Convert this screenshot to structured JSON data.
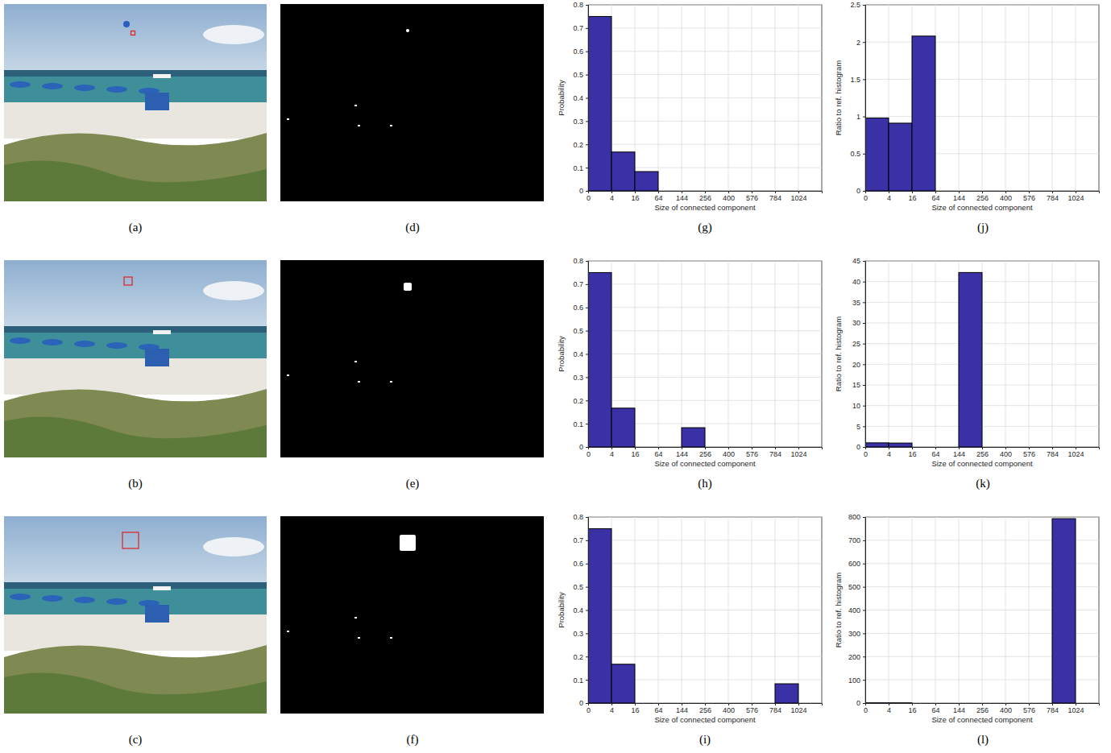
{
  "panel_labels": [
    "(a)",
    "(b)",
    "(c)",
    "(d)",
    "(e)",
    "(f)",
    "(g)",
    "(h)",
    "(i)",
    "(j)",
    "(k)",
    "(l)"
  ],
  "chart_data": [
    {
      "type": "histogram",
      "bins": [
        0,
        4,
        16,
        64,
        144,
        256,
        400,
        576,
        784,
        1024,
        1296
      ],
      "values": [
        0.75,
        0.167,
        0.083,
        0,
        0,
        0,
        0,
        0,
        0,
        0
      ],
      "xlim": [
        0,
        1296
      ],
      "xticks": [
        0,
        4,
        16,
        64,
        144,
        256,
        400,
        576,
        784,
        1024
      ],
      "ylim": [
        0,
        0.8
      ],
      "yticks": [
        0,
        0.1,
        0.2,
        0.3,
        0.4,
        0.5,
        0.6,
        0.7,
        0.8
      ],
      "x_label": "Size of connected component",
      "y_label": "Probability",
      "color": "#3b31a6",
      "grid": true
    },
    {
      "type": "histogram",
      "bins": [
        0,
        4,
        16,
        64,
        144,
        256,
        400,
        576,
        784,
        1024,
        1296
      ],
      "values": [
        0.75,
        0.167,
        0,
        0,
        0.083,
        0,
        0,
        0,
        0,
        0
      ],
      "xlim": [
        0,
        1296
      ],
      "xticks": [
        0,
        4,
        16,
        64,
        144,
        256,
        400,
        576,
        784,
        1024
      ],
      "ylim": [
        0,
        0.8
      ],
      "yticks": [
        0,
        0.1,
        0.2,
        0.3,
        0.4,
        0.5,
        0.6,
        0.7,
        0.8
      ],
      "x_label": "Size of connected component",
      "y_label": "Probability",
      "color": "#3b31a6",
      "grid": true
    },
    {
      "type": "histogram",
      "bins": [
        0,
        4,
        16,
        64,
        144,
        256,
        400,
        576,
        784,
        1024,
        1296
      ],
      "values": [
        0.75,
        0.167,
        0,
        0,
        0,
        0,
        0,
        0,
        0.083,
        0
      ],
      "xlim": [
        0,
        1296
      ],
      "xticks": [
        0,
        4,
        16,
        64,
        144,
        256,
        400,
        576,
        784,
        1024
      ],
      "ylim": [
        0,
        0.8
      ],
      "yticks": [
        0,
        0.1,
        0.2,
        0.3,
        0.4,
        0.5,
        0.6,
        0.7,
        0.8
      ],
      "x_label": "Size of connected component",
      "y_label": "Probability",
      "color": "#3b31a6",
      "grid": true
    },
    {
      "type": "histogram",
      "bins": [
        0,
        4,
        16,
        64,
        144,
        256,
        400,
        576,
        784,
        1024,
        1296
      ],
      "values": [
        0.98,
        0.91,
        2.08,
        0,
        0,
        0,
        0,
        0,
        0,
        0
      ],
      "xlim": [
        0,
        1296
      ],
      "xticks": [
        0,
        4,
        16,
        64,
        144,
        256,
        400,
        576,
        784,
        1024
      ],
      "ylim": [
        0,
        2.5
      ],
      "yticks": [
        0,
        0.5,
        1,
        1.5,
        2,
        2.5
      ],
      "x_label": "Size of connected component",
      "y_label": "Ratio to ref. histogram",
      "color": "#3b31a6",
      "grid": true
    },
    {
      "type": "histogram",
      "bins": [
        0,
        4,
        16,
        64,
        144,
        256,
        400,
        576,
        784,
        1024,
        1296
      ],
      "values": [
        1,
        0.95,
        0,
        0,
        42.2,
        0,
        0,
        0,
        0,
        0
      ],
      "xlim": [
        0,
        1296
      ],
      "xticks": [
        0,
        4,
        16,
        64,
        144,
        256,
        400,
        576,
        784,
        1024
      ],
      "ylim": [
        0,
        45
      ],
      "yticks": [
        0,
        5,
        10,
        15,
        20,
        25,
        30,
        35,
        40,
        45
      ],
      "x_label": "Size of connected component",
      "y_label": "Ratio to ref. histogram",
      "color": "#3b31a6",
      "grid": true
    },
    {
      "type": "histogram",
      "bins": [
        0,
        4,
        16,
        64,
        144,
        256,
        400,
        576,
        784,
        1024,
        1296
      ],
      "values": [
        1,
        0.92,
        0,
        0,
        0,
        0,
        0,
        0,
        793,
        0
      ],
      "xlim": [
        0,
        1296
      ],
      "xticks": [
        0,
        4,
        16,
        64,
        144,
        256,
        400,
        576,
        784,
        1024
      ],
      "ylim": [
        0,
        800
      ],
      "yticks": [
        0,
        100,
        200,
        300,
        400,
        500,
        600,
        700,
        800
      ],
      "x_label": "Size of connected component",
      "y_label": "Ratio to ref. histogram",
      "color": "#3b31a6",
      "grid": true
    }
  ]
}
